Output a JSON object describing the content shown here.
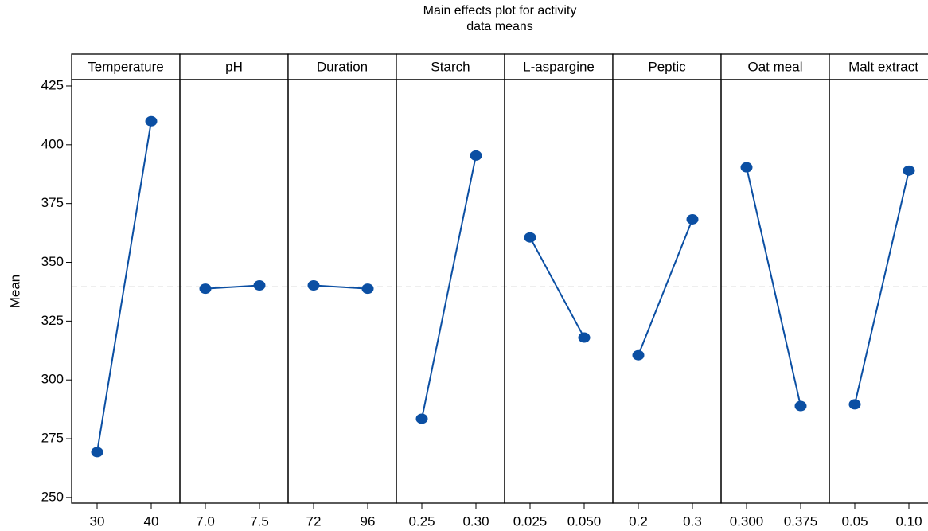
{
  "chart_data": {
    "type": "main-effects",
    "title": "Main effects plot for activity",
    "subtitle": "data means",
    "y_label": "Mean",
    "color": "#0b4fa3",
    "ylim": [
      247.6,
      427.7
    ],
    "yticks": [
      250,
      275,
      300,
      325,
      350,
      375,
      400,
      425
    ],
    "mean_line": 339.6,
    "panels": [
      {
        "name": "Temperature",
        "categories": [
          "30",
          "40"
        ],
        "values": [
          269.3,
          410.0
        ]
      },
      {
        "name": "pH",
        "categories": [
          "7.0",
          "7.5"
        ],
        "values": [
          338.8,
          340.2
        ]
      },
      {
        "name": "Duration",
        "categories": [
          "72",
          "96"
        ],
        "values": [
          340.2,
          338.8
        ]
      },
      {
        "name": "Starch",
        "categories": [
          "0.25",
          "0.30"
        ],
        "values": [
          283.5,
          395.4
        ]
      },
      {
        "name": "L-aspargine",
        "categories": [
          "0.025",
          "0.050"
        ],
        "values": [
          360.6,
          318.0
        ]
      },
      {
        "name": "Peptic",
        "categories": [
          "0.2",
          "0.3"
        ],
        "values": [
          310.5,
          368.3
        ]
      },
      {
        "name": "Oat meal",
        "categories": [
          "0.300",
          "0.375"
        ],
        "values": [
          390.4,
          288.9
        ]
      },
      {
        "name": "Malt extract",
        "categories": [
          "0.05",
          "0.10"
        ],
        "values": [
          289.6,
          389.0
        ]
      }
    ]
  }
}
